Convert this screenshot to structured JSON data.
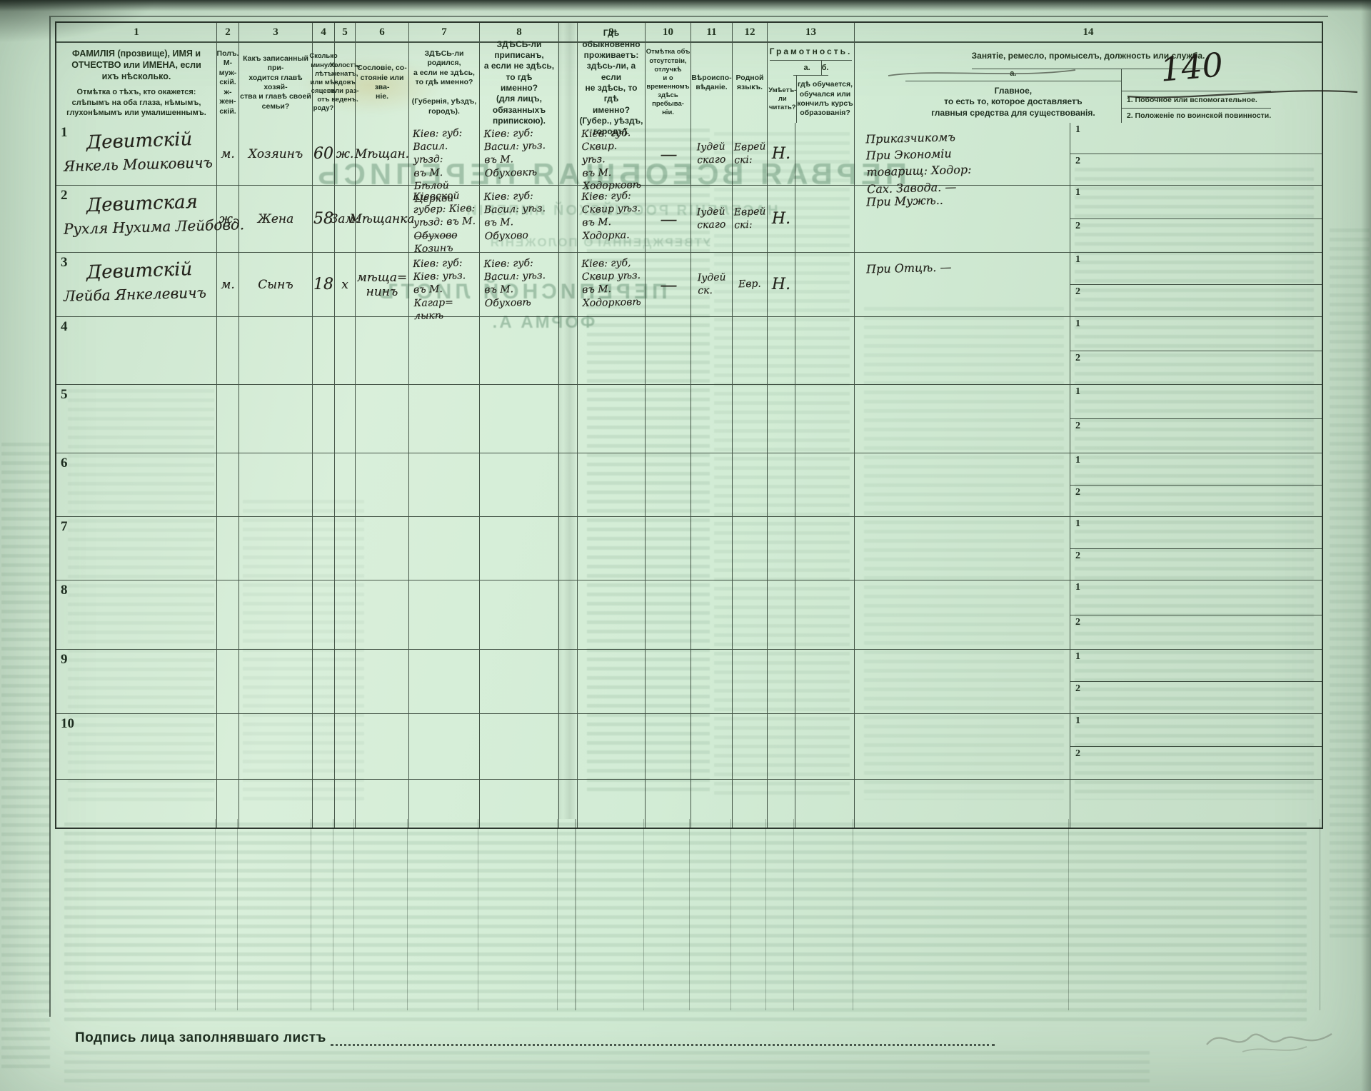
{
  "bleedthrough": {
    "headline": "ПЕРВАЯ ВСЕОБЩАЯ ПЕРЕПИСЬ",
    "subline1": "НАСЕЛЕНІЯ РОССІЙСКОЙ ИМПЕРІИ",
    "subline2": "УТВЕРЖДЕННАГО ПОЛОЖЕНІЯ",
    "sheet_title": "ПЕРЕПИСНОЙ ЛИСТЪ",
    "form_label": "ФОРМА А."
  },
  "header": {
    "col_numbers": {
      "n1": "1",
      "n2": "2",
      "n3": "3",
      "n4": "4",
      "n5": "5",
      "n6": "6",
      "n7": "7",
      "n8": "8",
      "n9": "9",
      "n10": "10",
      "n11": "11",
      "n12": "12",
      "n13": "13",
      "n14": "14"
    },
    "col1_title_1": "ФАМИЛІЯ (прозвище), ИМЯ и ОТЧЕСТВО или ИМЕНА, если ихъ нѣсколько.",
    "col1_title_2": "Отмѣтка о тѣхъ, кто окажется: слѣпымъ на оба глаза, нѣмымъ, глухонѣмымъ или умалишеннымъ.",
    "col2": "Полъ.\nМ-муж-\nскій.\nж-жен-\nскій.",
    "col3": "Какъ записанный при-\nходится главѣ хозяй-\nства и главѣ своей\nсемьи?",
    "col4": "Сколько\nминуло\nлѣтъ\nили мѣ-\nсяцевъ\nотъ роду?",
    "col5": "Холостъ,\nженатъ,\nвдовъ\nили раз-\nведенъ.",
    "col6": "Сословіе, со-\nстояніе или зва-\nніе.",
    "col7": "ЗДѢСЬ-ли родился,\nа если не здѣсь,\nто гдѣ именно?\n\n(Губернія, уѣздъ, городъ).",
    "col8": "ЗДѢСЬ-ли приписанъ,\nа если не здѣсь, то гдѣ\nименно?\n(для лицъ, обязанныхъ\nприпискою).",
    "col9": "Гдѣ обыкновенно\nпроживаетъ:\nздѣсь-ли, а если\nне здѣсь, то гдѣ\nименно?\n(Губер., уѣздъ, городъ).",
    "col10": "Отмѣтка объ\nотсутствіи, отлучкѣ\nи о временномъ\nздѣсь пребыва-\nніи.",
    "col11": "Вѣроиспо-\nвѣданіе.",
    "col12": "Родной\nязыкъ.",
    "col13_title": "Грамотность.",
    "col13a_label": "а.",
    "col13b_label": "б.",
    "col13a_desc": "Умѣетъ-\nли\nчитать?",
    "col13b_desc": "гдѣ обучается,\nобучался или\nкончилъ курсъ\nобразованія?",
    "col14_title": "Занятіе, ремесло, промыселъ, должность или служба.",
    "col14a_label": "а.",
    "col14a_desc": "Главное,\nто есть то, которое доставляетъ\nглавныя средства для существованія.",
    "col14r1": "1. Побочное или вспомогательное.",
    "col14r2": "2. Положеніе по воинской повинности.",
    "sub1": "1",
    "sub2": "2",
    "annotation_140": "140"
  },
  "rows": [
    {
      "num": "1",
      "name1": "Девитскій",
      "name2": "Янкель Мошковичъ",
      "sex": "м.",
      "relation": "Хозяинъ",
      "age": "60",
      "marital": "ж.",
      "estate": "Мѣщан.",
      "born": "Кіев: губ:\nВасил. уѣзд:\nвъ М.\nБѣлой Церкви",
      "registered": "Кіев: губ:\nВасил: уѣз.\nвъ М.\nОбуховкѣ",
      "resides": "Кіев: губ.\nСквир. уѣз.\nвъ М.\nХодорковѣ",
      "absence": "—",
      "religion": "Іудей\nскаго",
      "language": "Еврей\nскі:",
      "read": "Н.",
      "edu": "",
      "main": "Приказчикомъ\nПри Экономіи\nтоварищ: Ходор:\nСах. Завода. —"
    },
    {
      "num": "2",
      "name1": "Девитская",
      "name2": "Рухля Нухима Лейбовд.",
      "sex": "ж.",
      "relation": "Жена",
      "age": "58",
      "marital": "Зам:",
      "estate": "Мѣщанка",
      "born": "Кіевской\nгубер: Кіев:\nуѣзд: въ М. О̶б̶у̶х̶о̶в̶о̶\nКозинъ",
      "registered": "Кіев: губ:\nВасил: уѣз.\nвъ М.\nОбухово",
      "resides": "Кіев: губ:\nСквир уѣз.\nвъ М.\nХодорка.",
      "absence": "—",
      "religion": "Іудей\nскаго",
      "language": "Еврей\nскі:",
      "read": "Н.",
      "edu": "",
      "main": "При Мужѣ.."
    },
    {
      "num": "3",
      "name1": "Девитскій",
      "name2": "Лейба Янкелевичъ",
      "sex": "м.",
      "relation": "Сынъ",
      "age": "18",
      "marital": "х",
      "estate": "мѣща=\nнинъ",
      "born": "Кіев: губ:\nКіев: уѣз.\nвъ М. Кагар=\nлыкѣ",
      "registered": "Кіев: губ:\nВасил: уѣз.\nвъ М.\nОбуховѣ",
      "resides": "Кіев: губ,\nСквир уѣз.\nвъ М.\nХодорковѣ",
      "absence": "—",
      "religion": "Іудей\nск.",
      "language": "Евр.",
      "read": "Н.",
      "edu": "",
      "main": "При Отцѣ. —"
    },
    {
      "num": "4",
      "name1": "",
      "name2": "",
      "sex": "",
      "relation": "",
      "age": "",
      "marital": "",
      "estate": "",
      "born": "",
      "registered": "",
      "resides": "",
      "absence": "",
      "religion": "",
      "language": "",
      "read": "",
      "edu": "",
      "main": ""
    },
    {
      "num": "5",
      "name1": "",
      "name2": "",
      "sex": "",
      "relation": "",
      "age": "",
      "marital": "",
      "estate": "",
      "born": "",
      "registered": "",
      "resides": "",
      "absence": "",
      "religion": "",
      "language": "",
      "read": "",
      "edu": "",
      "main": ""
    },
    {
      "num": "6",
      "name1": "",
      "name2": "",
      "sex": "",
      "relation": "",
      "age": "",
      "marital": "",
      "estate": "",
      "born": "",
      "registered": "",
      "resides": "",
      "absence": "",
      "religion": "",
      "language": "",
      "read": "",
      "edu": "",
      "main": ""
    },
    {
      "num": "7",
      "name1": "",
      "name2": "",
      "sex": "",
      "relation": "",
      "age": "",
      "marital": "",
      "estate": "",
      "born": "",
      "registered": "",
      "resides": "",
      "absence": "",
      "religion": "",
      "language": "",
      "read": "",
      "edu": "",
      "main": ""
    },
    {
      "num": "8",
      "name1": "",
      "name2": "",
      "sex": "",
      "relation": "",
      "age": "",
      "marital": "",
      "estate": "",
      "born": "",
      "registered": "",
      "resides": "",
      "absence": "",
      "religion": "",
      "language": "",
      "read": "",
      "edu": "",
      "main": ""
    },
    {
      "num": "9",
      "name1": "",
      "name2": "",
      "sex": "",
      "relation": "",
      "age": "",
      "marital": "",
      "estate": "",
      "born": "",
      "registered": "",
      "resides": "",
      "absence": "",
      "religion": "",
      "language": "",
      "read": "",
      "edu": "",
      "main": ""
    },
    {
      "num": "10",
      "name1": "",
      "name2": "",
      "sex": "",
      "relation": "",
      "age": "",
      "marital": "",
      "estate": "",
      "born": "",
      "registered": "",
      "resides": "",
      "absence": "",
      "religion": "",
      "language": "",
      "read": "",
      "edu": "",
      "main": ""
    }
  ],
  "footer": {
    "signature_label": "Подпись лица заполнявшаго листъ"
  }
}
